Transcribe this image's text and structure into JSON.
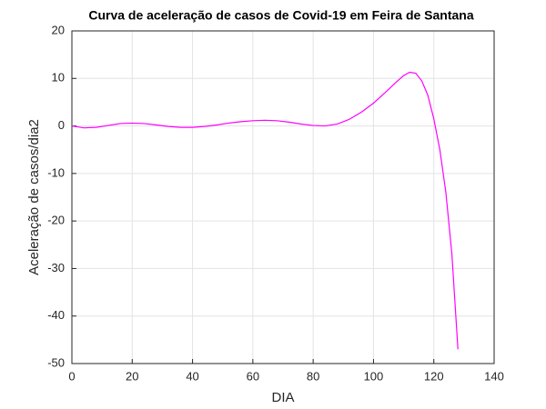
{
  "chart_data": {
    "type": "line",
    "title": "Curva de aceleração de casos de Covid-19 em Feira de Santana",
    "x_label": "DIA",
    "y_label": "Aceleração de casos/dia2",
    "x": [
      0,
      4,
      8,
      12,
      16,
      20,
      24,
      28,
      32,
      36,
      40,
      44,
      48,
      52,
      56,
      60,
      64,
      68,
      72,
      76,
      80,
      84,
      88,
      92,
      96,
      100,
      104,
      108,
      110,
      112,
      114,
      116,
      118,
      120,
      122,
      124,
      126,
      128
    ],
    "series": [
      {
        "color": "#ff00ff",
        "values": [
          0,
          -0.4,
          -0.3,
          0.1,
          0.5,
          0.6,
          0.5,
          0.2,
          -0.1,
          -0.3,
          -0.3,
          -0.1,
          0.2,
          0.6,
          0.9,
          1.1,
          1.2,
          1.1,
          0.8,
          0.4,
          0.1,
          0.0,
          0.4,
          1.4,
          2.9,
          4.8,
          7.1,
          9.5,
          10.6,
          11.3,
          11.1,
          9.5,
          6.5,
          1.5,
          -5,
          -14,
          -27,
          -47
        ]
      }
    ],
    "xlim": [
      0,
      140
    ],
    "xticks": [
      0,
      20,
      40,
      60,
      80,
      100,
      120,
      140
    ],
    "ylim": [
      -50,
      20
    ],
    "yticks": [
      -50,
      -40,
      -30,
      -20,
      -10,
      0,
      10,
      20
    ],
    "grid": true
  }
}
